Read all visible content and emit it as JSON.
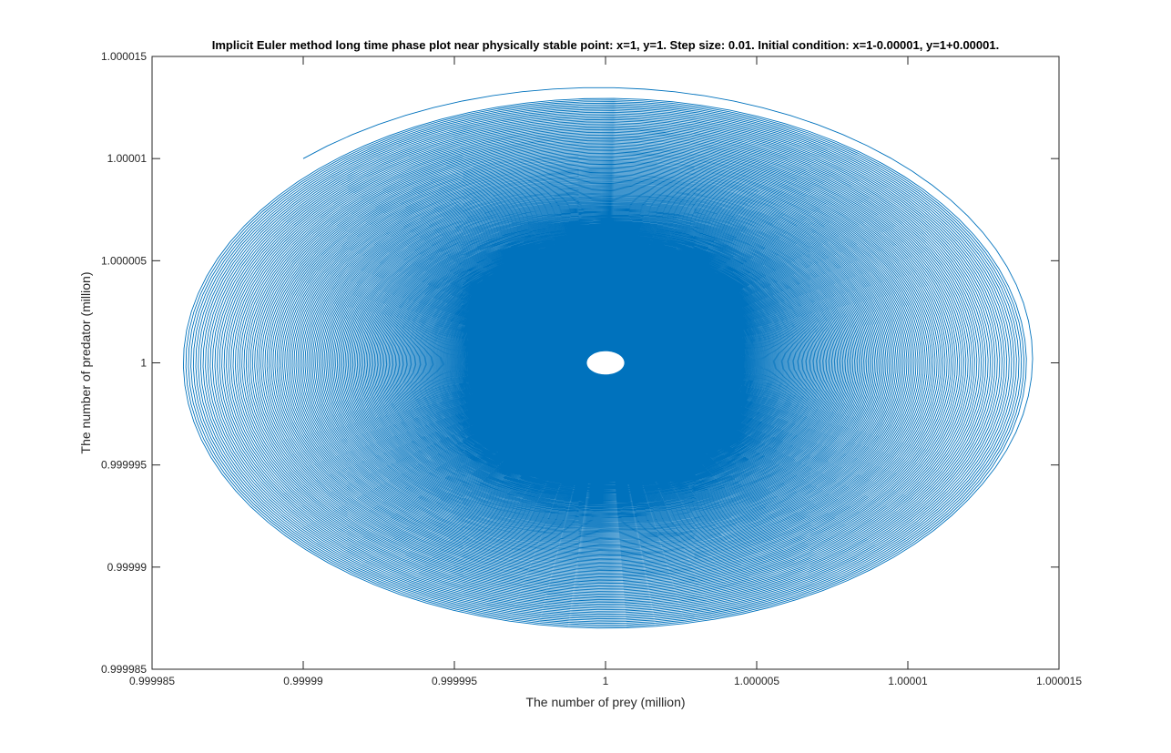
{
  "chart_data": {
    "type": "line",
    "title": "Implicit Euler method long time phase plot near physically stable point: x=1, y=1. Step size: 0.01. Initial condition: x=1-0.00001, y=1+0.00001.",
    "xlabel": "The number of prey (million)",
    "ylabel": "The number of predator (million)",
    "xlim": [
      0.999985,
      1.000015
    ],
    "ylim": [
      0.999985,
      1.000015
    ],
    "x_ticks": [
      0.999985,
      0.99999,
      0.999995,
      1,
      1.000005,
      1.00001,
      1.000015
    ],
    "y_ticks": [
      0.999985,
      0.99999,
      0.999995,
      1,
      1.000005,
      1.00001,
      1.000015
    ],
    "x_tick_labels": [
      "0.999985",
      "0.99999",
      "0.999995",
      "1",
      "1.000005",
      "1.00001",
      "1.000015"
    ],
    "y_tick_labels": [
      "0.999985",
      "0.99999",
      "0.999995",
      "1",
      "1.000005",
      "1.00001",
      "1.000015"
    ],
    "grid": false,
    "box": true,
    "series": [
      {
        "color": "#0072BD",
        "initial_condition": {
          "x": 0.99999,
          "y": 1.00001
        },
        "equilibrium": {
          "x": 1,
          "y": 1
        },
        "max_x_amplitude": 1.4e-05,
        "max_y_amplitude": 1.3e-05
      }
    ]
  },
  "colors": {
    "axis": "#262626",
    "line": "#0072BD",
    "background": "#ffffff"
  }
}
